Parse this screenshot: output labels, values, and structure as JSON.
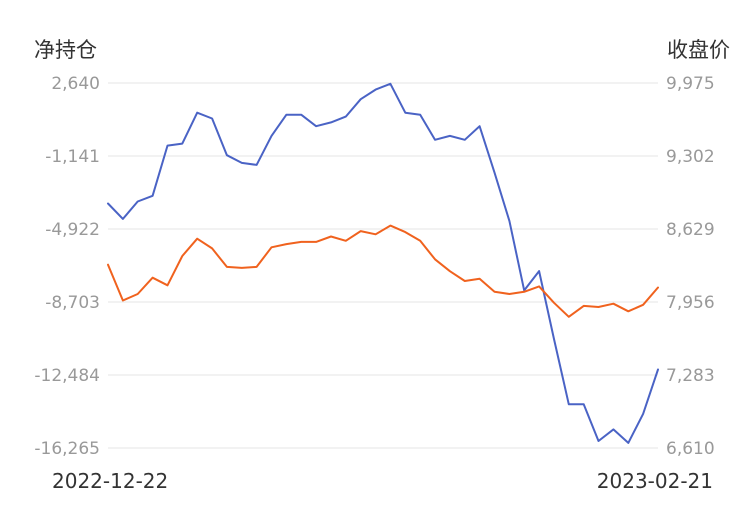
{
  "chart_data": {
    "type": "line",
    "left_axis_title": "净持仓",
    "right_axis_title": "收盘价",
    "x_start_label": "2022-12-22",
    "x_end_label": "2023-02-21",
    "y_left_ticks": [
      "2,640",
      "-1,141",
      "-4,922",
      "-8,703",
      "-12,484",
      "-16,265"
    ],
    "y_right_ticks": [
      "9,975",
      "9,302",
      "8,629",
      "7,956",
      "7,283",
      "6,610"
    ],
    "y_left_range": [
      -16265,
      2640
    ],
    "y_right_range": [
      6610,
      9975
    ],
    "grid": true,
    "colors": {
      "net_position": "#4a63c5",
      "close_price": "#f0621e",
      "grid": "#e6e6e6"
    },
    "series": [
      {
        "axis": "left",
        "values": [
          -3600,
          -4400,
          -3500,
          -3200,
          -600,
          -500,
          1100,
          800,
          -1100,
          -1500,
          -1600,
          -100,
          1000,
          1000,
          400,
          600,
          900,
          1800,
          2300,
          2600,
          1100,
          1000,
          -300,
          -100,
          -300,
          400,
          -2000,
          -4500,
          -8100,
          -7100,
          -10600,
          -14000,
          -14000,
          -15900,
          -15300,
          -16000,
          -14500,
          -12200
        ]
      },
      {
        "axis": "right",
        "values": [
          8300,
          7970,
          8030,
          8180,
          8110,
          8380,
          8540,
          8450,
          8280,
          8270,
          8280,
          8460,
          8490,
          8510,
          8510,
          8560,
          8520,
          8610,
          8580,
          8660,
          8600,
          8520,
          8350,
          8240,
          8150,
          8170,
          8050,
          8030,
          8050,
          8100,
          7950,
          7820,
          7920,
          7910,
          7940,
          7870,
          7930,
          8090
        ]
      }
    ]
  }
}
